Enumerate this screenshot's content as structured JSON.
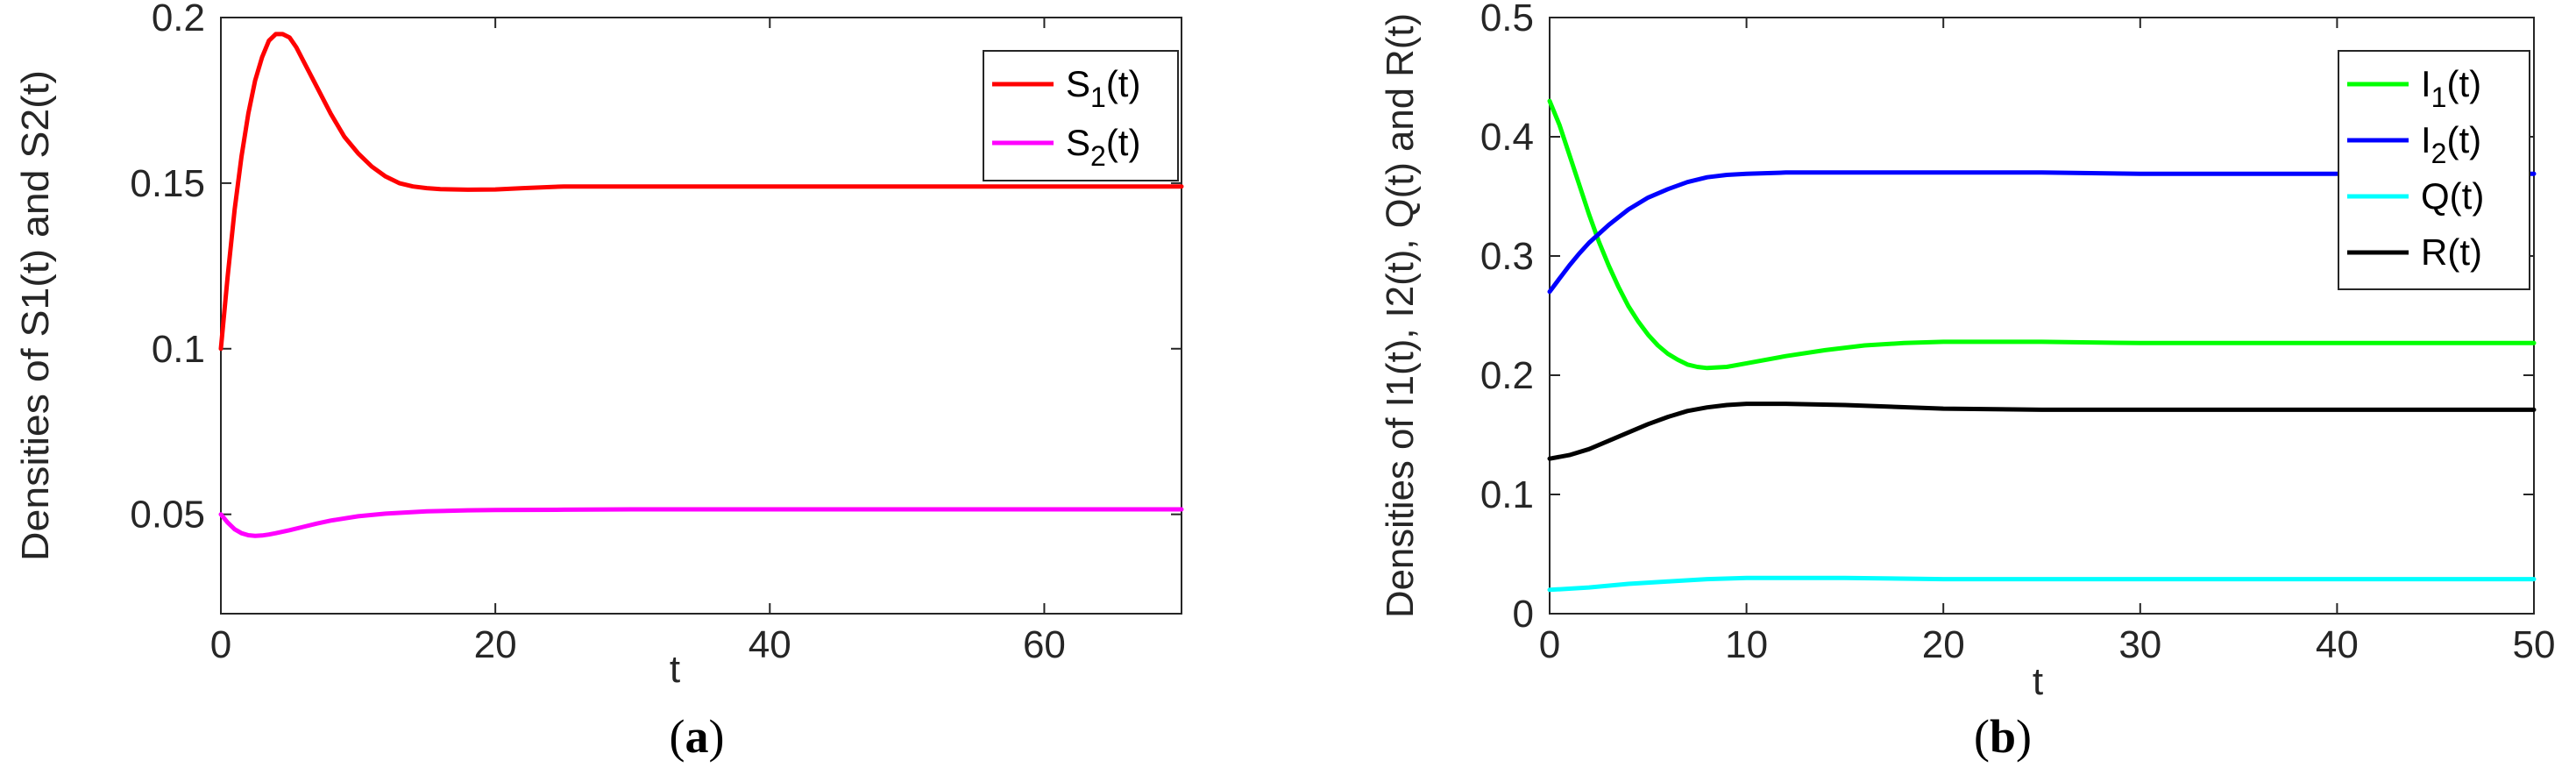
{
  "chart_data": [
    {
      "id": "a",
      "type": "line",
      "caption_letter": "a",
      "xlabel": "t",
      "ylabel": "Densities of S1(t) and S2(t)",
      "xlim": [
        0,
        70
      ],
      "ylim": [
        0.02,
        0.2
      ],
      "xticks": [
        0,
        20,
        40,
        60
      ],
      "xtick_labels": [
        "0",
        "20",
        "40",
        "60"
      ],
      "yticks": [
        0.05,
        0.1,
        0.15,
        0.2
      ],
      "ytick_labels": [
        "0.05",
        "0.1",
        "0.15",
        "0.2"
      ],
      "legend_position": "top-right",
      "series": [
        {
          "name": "S1(t)",
          "legend_main": "S",
          "legend_sub": "1",
          "legend_rest": "(t)",
          "color": "#ff0000",
          "x": [
            0,
            0.5,
            1,
            1.5,
            2,
            2.5,
            3,
            3.5,
            4,
            4.5,
            5,
            5.5,
            6,
            7,
            8,
            9,
            10,
            11,
            12,
            13,
            14,
            15,
            16,
            18,
            20,
            22,
            25,
            30,
            40,
            50,
            60,
            70
          ],
          "y": [
            0.1,
            0.122,
            0.142,
            0.158,
            0.171,
            0.181,
            0.188,
            0.193,
            0.195,
            0.195,
            0.194,
            0.191,
            0.187,
            0.179,
            0.171,
            0.164,
            0.159,
            0.155,
            0.152,
            0.15,
            0.149,
            0.1485,
            0.1482,
            0.148,
            0.1481,
            0.1485,
            0.149,
            0.149,
            0.149,
            0.149,
            0.149,
            0.149
          ]
        },
        {
          "name": "S2(t)",
          "legend_main": "S",
          "legend_sub": "2",
          "legend_rest": "(t)",
          "color": "#ff00ff",
          "x": [
            0,
            0.5,
            1,
            1.5,
            2,
            2.5,
            3,
            3.5,
            4,
            5,
            6,
            7,
            8,
            10,
            12,
            15,
            18,
            20,
            25,
            30,
            40,
            50,
            60,
            70
          ],
          "y": [
            0.05,
            0.0475,
            0.0455,
            0.0443,
            0.0437,
            0.0435,
            0.0436,
            0.0439,
            0.0443,
            0.0452,
            0.0462,
            0.0472,
            0.0481,
            0.0494,
            0.0502,
            0.0509,
            0.0512,
            0.0513,
            0.0514,
            0.0515,
            0.0515,
            0.0515,
            0.0515,
            0.0515
          ]
        }
      ]
    },
    {
      "id": "b",
      "type": "line",
      "caption_letter": "b",
      "xlabel": "t",
      "ylabel": "Densities of I1(t), I2(t), Q(t) and R(t)",
      "xlim": [
        0,
        50
      ],
      "ylim": [
        0,
        0.5
      ],
      "xticks": [
        0,
        10,
        20,
        30,
        40,
        50
      ],
      "xtick_labels": [
        "0",
        "10",
        "20",
        "30",
        "40",
        "50"
      ],
      "yticks": [
        0,
        0.1,
        0.2,
        0.3,
        0.4,
        0.5
      ],
      "ytick_labels": [
        "0",
        "0.1",
        "0.2",
        "0.3",
        "0.4",
        "0.5"
      ],
      "legend_position": "top-right",
      "series": [
        {
          "name": "I1(t)",
          "legend_main": "I",
          "legend_sub": "1",
          "legend_rest": "(t)",
          "color": "#00ff00",
          "x": [
            0,
            0.5,
            1,
            1.5,
            2,
            2.5,
            3,
            3.5,
            4,
            4.5,
            5,
            5.5,
            6,
            6.5,
            7,
            7.5,
            8,
            9,
            10,
            12,
            14,
            16,
            18,
            20,
            22,
            25,
            30,
            40,
            50
          ],
          "y": [
            0.43,
            0.41,
            0.385,
            0.36,
            0.335,
            0.312,
            0.292,
            0.274,
            0.258,
            0.245,
            0.234,
            0.225,
            0.218,
            0.213,
            0.209,
            0.207,
            0.206,
            0.207,
            0.21,
            0.216,
            0.221,
            0.225,
            0.227,
            0.228,
            0.228,
            0.228,
            0.227,
            0.227,
            0.227
          ]
        },
        {
          "name": "I2(t)",
          "legend_main": "I",
          "legend_sub": "2",
          "legend_rest": "(t)",
          "color": "#0000ff",
          "x": [
            0,
            0.5,
            1,
            1.5,
            2,
            3,
            4,
            5,
            6,
            7,
            8,
            9,
            10,
            12,
            14,
            16,
            20,
            25,
            30,
            40,
            50
          ],
          "y": [
            0.27,
            0.281,
            0.292,
            0.302,
            0.311,
            0.326,
            0.339,
            0.349,
            0.356,
            0.362,
            0.366,
            0.368,
            0.369,
            0.37,
            0.37,
            0.37,
            0.37,
            0.37,
            0.369,
            0.369,
            0.369
          ]
        },
        {
          "name": "Q(t)",
          "legend_main": "Q(t)",
          "legend_sub": "",
          "legend_rest": "",
          "color": "#00ffff",
          "x": [
            0,
            2,
            4,
            6,
            8,
            10,
            12,
            15,
            20,
            30,
            40,
            50
          ],
          "y": [
            0.02,
            0.022,
            0.025,
            0.027,
            0.029,
            0.03,
            0.03,
            0.03,
            0.029,
            0.029,
            0.029,
            0.029
          ]
        },
        {
          "name": "R(t)",
          "legend_main": "R(t)",
          "legend_sub": "",
          "legend_rest": "",
          "color": "#000000",
          "x": [
            0,
            1,
            2,
            3,
            4,
            5,
            6,
            7,
            8,
            9,
            10,
            12,
            15,
            20,
            25,
            30,
            40,
            50
          ],
          "y": [
            0.13,
            0.133,
            0.138,
            0.145,
            0.152,
            0.159,
            0.165,
            0.17,
            0.173,
            0.175,
            0.176,
            0.176,
            0.175,
            0.172,
            0.171,
            0.171,
            0.171,
            0.171
          ]
        }
      ]
    }
  ]
}
